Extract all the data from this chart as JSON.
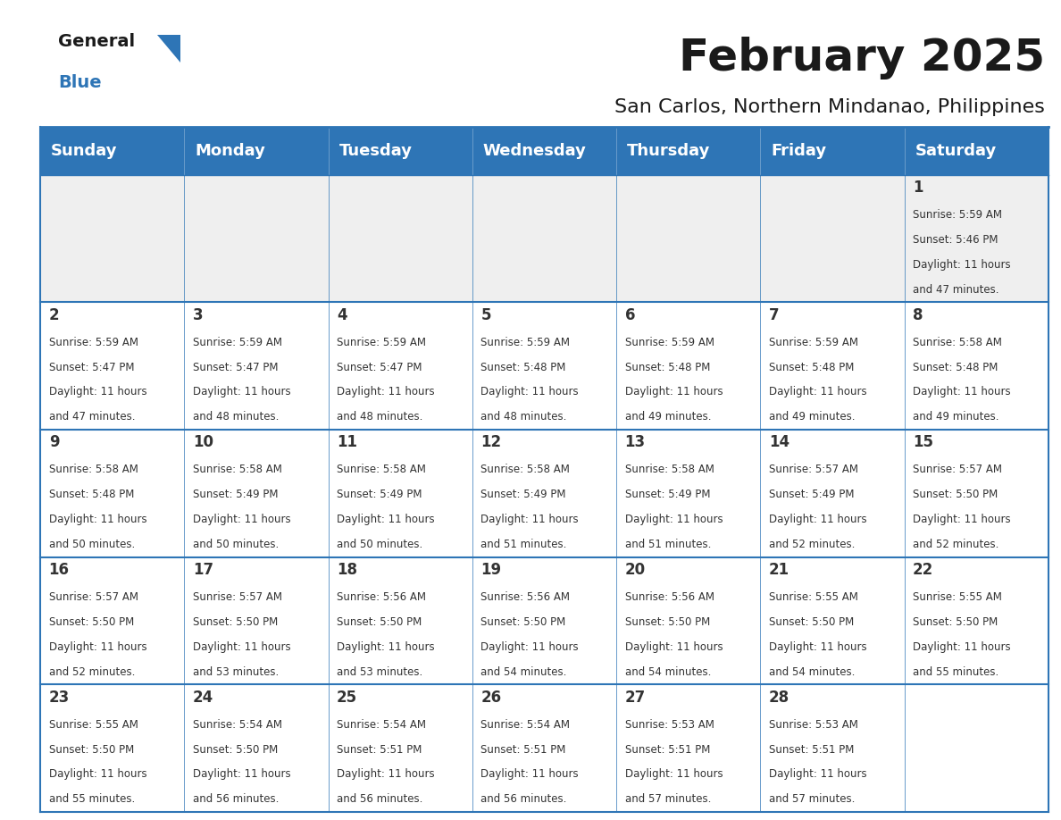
{
  "title": "February 2025",
  "subtitle": "San Carlos, Northern Mindanao, Philippines",
  "header_bg": "#2E75B6",
  "header_text_color": "#FFFFFF",
  "cell_bg_white": "#FFFFFF",
  "cell_bg_light": "#EFEFEF",
  "border_color": "#2E75B6",
  "text_color": "#333333",
  "days_of_week": [
    "Sunday",
    "Monday",
    "Tuesday",
    "Wednesday",
    "Thursday",
    "Friday",
    "Saturday"
  ],
  "calendar_data": [
    [
      null,
      null,
      null,
      null,
      null,
      null,
      {
        "day": "1",
        "sunrise": "5:59 AM",
        "sunset": "5:46 PM",
        "daylight": "11 hours",
        "daylight2": "and 47 minutes."
      }
    ],
    [
      {
        "day": "2",
        "sunrise": "5:59 AM",
        "sunset": "5:47 PM",
        "daylight": "11 hours",
        "daylight2": "and 47 minutes."
      },
      {
        "day": "3",
        "sunrise": "5:59 AM",
        "sunset": "5:47 PM",
        "daylight": "11 hours",
        "daylight2": "and 48 minutes."
      },
      {
        "day": "4",
        "sunrise": "5:59 AM",
        "sunset": "5:47 PM",
        "daylight": "11 hours",
        "daylight2": "and 48 minutes."
      },
      {
        "day": "5",
        "sunrise": "5:59 AM",
        "sunset": "5:48 PM",
        "daylight": "11 hours",
        "daylight2": "and 48 minutes."
      },
      {
        "day": "6",
        "sunrise": "5:59 AM",
        "sunset": "5:48 PM",
        "daylight": "11 hours",
        "daylight2": "and 49 minutes."
      },
      {
        "day": "7",
        "sunrise": "5:59 AM",
        "sunset": "5:48 PM",
        "daylight": "11 hours",
        "daylight2": "and 49 minutes."
      },
      {
        "day": "8",
        "sunrise": "5:58 AM",
        "sunset": "5:48 PM",
        "daylight": "11 hours",
        "daylight2": "and 49 minutes."
      }
    ],
    [
      {
        "day": "9",
        "sunrise": "5:58 AM",
        "sunset": "5:48 PM",
        "daylight": "11 hours",
        "daylight2": "and 50 minutes."
      },
      {
        "day": "10",
        "sunrise": "5:58 AM",
        "sunset": "5:49 PM",
        "daylight": "11 hours",
        "daylight2": "and 50 minutes."
      },
      {
        "day": "11",
        "sunrise": "5:58 AM",
        "sunset": "5:49 PM",
        "daylight": "11 hours",
        "daylight2": "and 50 minutes."
      },
      {
        "day": "12",
        "sunrise": "5:58 AM",
        "sunset": "5:49 PM",
        "daylight": "11 hours",
        "daylight2": "and 51 minutes."
      },
      {
        "day": "13",
        "sunrise": "5:58 AM",
        "sunset": "5:49 PM",
        "daylight": "11 hours",
        "daylight2": "and 51 minutes."
      },
      {
        "day": "14",
        "sunrise": "5:57 AM",
        "sunset": "5:49 PM",
        "daylight": "11 hours",
        "daylight2": "and 52 minutes."
      },
      {
        "day": "15",
        "sunrise": "5:57 AM",
        "sunset": "5:50 PM",
        "daylight": "11 hours",
        "daylight2": "and 52 minutes."
      }
    ],
    [
      {
        "day": "16",
        "sunrise": "5:57 AM",
        "sunset": "5:50 PM",
        "daylight": "11 hours",
        "daylight2": "and 52 minutes."
      },
      {
        "day": "17",
        "sunrise": "5:57 AM",
        "sunset": "5:50 PM",
        "daylight": "11 hours",
        "daylight2": "and 53 minutes."
      },
      {
        "day": "18",
        "sunrise": "5:56 AM",
        "sunset": "5:50 PM",
        "daylight": "11 hours",
        "daylight2": "and 53 minutes."
      },
      {
        "day": "19",
        "sunrise": "5:56 AM",
        "sunset": "5:50 PM",
        "daylight": "11 hours",
        "daylight2": "and 54 minutes."
      },
      {
        "day": "20",
        "sunrise": "5:56 AM",
        "sunset": "5:50 PM",
        "daylight": "11 hours",
        "daylight2": "and 54 minutes."
      },
      {
        "day": "21",
        "sunrise": "5:55 AM",
        "sunset": "5:50 PM",
        "daylight": "11 hours",
        "daylight2": "and 54 minutes."
      },
      {
        "day": "22",
        "sunrise": "5:55 AM",
        "sunset": "5:50 PM",
        "daylight": "11 hours",
        "daylight2": "and 55 minutes."
      }
    ],
    [
      {
        "day": "23",
        "sunrise": "5:55 AM",
        "sunset": "5:50 PM",
        "daylight": "11 hours",
        "daylight2": "and 55 minutes."
      },
      {
        "day": "24",
        "sunrise": "5:54 AM",
        "sunset": "5:50 PM",
        "daylight": "11 hours",
        "daylight2": "and 56 minutes."
      },
      {
        "day": "25",
        "sunrise": "5:54 AM",
        "sunset": "5:51 PM",
        "daylight": "11 hours",
        "daylight2": "and 56 minutes."
      },
      {
        "day": "26",
        "sunrise": "5:54 AM",
        "sunset": "5:51 PM",
        "daylight": "11 hours",
        "daylight2": "and 56 minutes."
      },
      {
        "day": "27",
        "sunrise": "5:53 AM",
        "sunset": "5:51 PM",
        "daylight": "11 hours",
        "daylight2": "and 57 minutes."
      },
      {
        "day": "28",
        "sunrise": "5:53 AM",
        "sunset": "5:51 PM",
        "daylight": "11 hours",
        "daylight2": "and 57 minutes."
      },
      null
    ]
  ],
  "logo_text1": "General",
  "logo_text2": "Blue",
  "logo_color1": "#1a1a1a",
  "logo_color2": "#2E75B6",
  "logo_triangle_color": "#2E75B6",
  "title_fontsize": 36,
  "subtitle_fontsize": 16,
  "header_fontsize": 13,
  "day_num_fontsize": 12,
  "cell_text_fontsize": 8.5
}
